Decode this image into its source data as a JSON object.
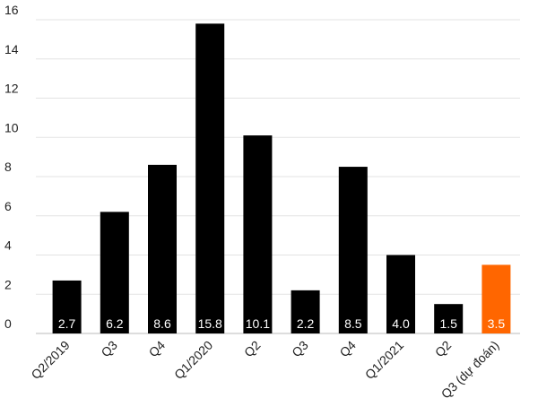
{
  "chart_data": {
    "type": "bar",
    "categories": [
      "Q2/2019",
      "Q3",
      "Q4",
      "Q1/2020",
      "Q2",
      "Q3",
      "Q4",
      "Q1/2021",
      "Q2",
      "Q3 (dự đoán)"
    ],
    "values": [
      2.7,
      6.2,
      8.6,
      15.8,
      10.1,
      2.2,
      8.5,
      4.0,
      1.5,
      3.5
    ],
    "value_labels": [
      "2.7",
      "6.2",
      "8.6",
      "15.8",
      "10.1",
      "2.2",
      "8.5",
      "4.0",
      "1.5",
      "3.5"
    ],
    "colors": [
      "#000000",
      "#000000",
      "#000000",
      "#000000",
      "#000000",
      "#000000",
      "#000000",
      "#000000",
      "#000000",
      "#ff6600"
    ],
    "ylim": [
      0,
      16
    ],
    "yticks": [
      0,
      2,
      4,
      6,
      8,
      10,
      12,
      14,
      16
    ],
    "grid": true
  }
}
